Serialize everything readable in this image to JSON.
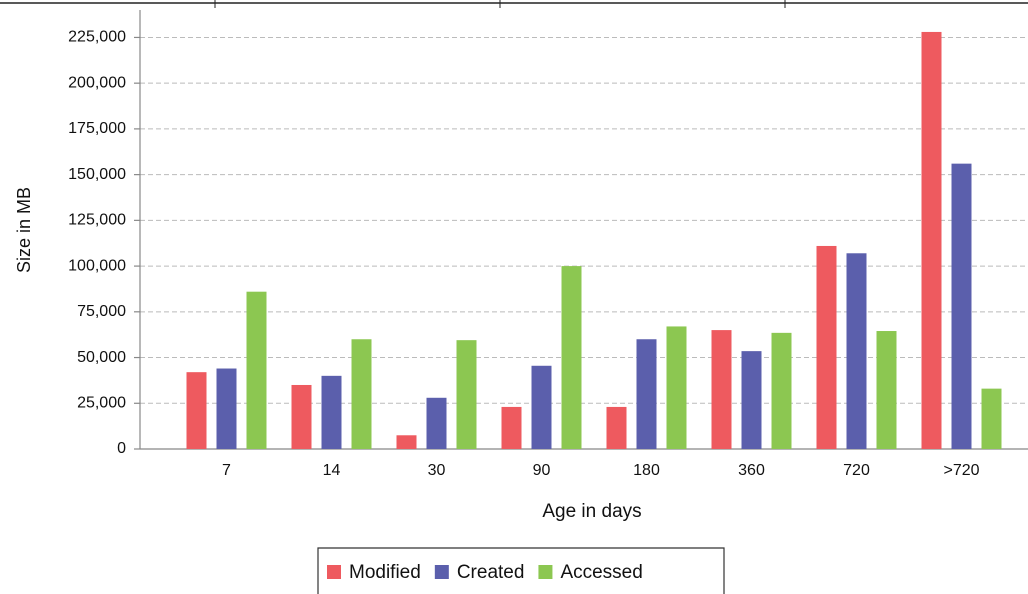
{
  "chart_data": {
    "type": "bar",
    "categories": [
      "7",
      "14",
      "30",
      "90",
      "180",
      "360",
      "720",
      ">720"
    ],
    "series": [
      {
        "name": "Modified",
        "color": "#ee5a5f",
        "values": [
          42000,
          35000,
          7500,
          23000,
          23000,
          65000,
          111000,
          228000
        ]
      },
      {
        "name": "Created",
        "color": "#5b5fac",
        "values": [
          44000,
          40000,
          28000,
          45500,
          60000,
          53500,
          107000,
          156000
        ]
      },
      {
        "name": "Accessed",
        "color": "#8cc751",
        "values": [
          86000,
          60000,
          59500,
          100000,
          67000,
          63500,
          64500,
          33000
        ]
      }
    ],
    "x_label": "Age in days",
    "y_label": "Size in MB",
    "ylim": [
      0,
      240000
    ],
    "yticks": [
      0,
      {
        "value": 25000,
        "label": "25,000"
      },
      {
        "value": 50000,
        "label": "50,000"
      },
      {
        "value": 75000,
        "label": "75,000"
      },
      {
        "value": 100000,
        "label": "100,000"
      },
      {
        "value": 125000,
        "label": "125,000"
      },
      {
        "value": 150000,
        "label": "150,000"
      },
      {
        "value": 175000,
        "label": "175,000"
      },
      {
        "value": 200000,
        "label": "200,000"
      },
      {
        "value": 225000,
        "label": "225,000"
      }
    ],
    "grid": true
  }
}
